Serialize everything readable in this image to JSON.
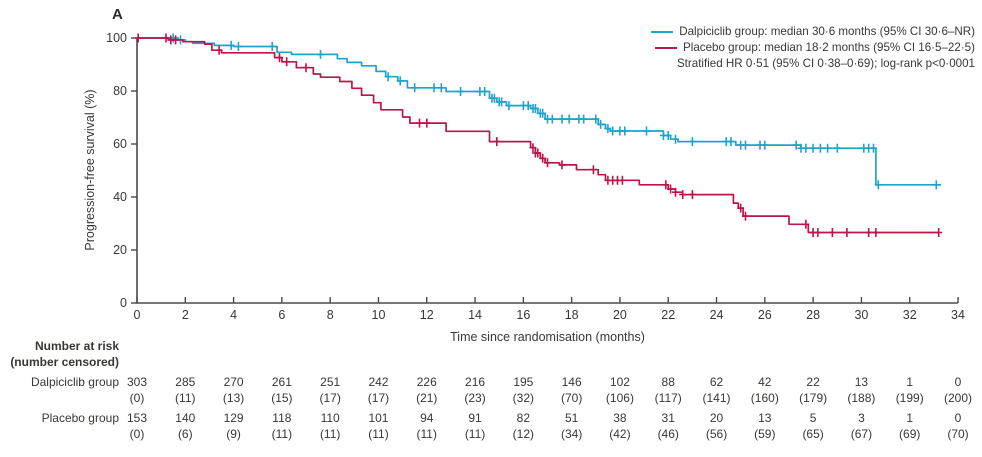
{
  "panel": {
    "label": "A"
  },
  "legend": {
    "entries": [
      {
        "label": "Dalpiciclib group: median 30·6 months (95% CI 30·6–NR)"
      },
      {
        "label": "Placebo group: median 18·2 months (95% CI 16·5–22·5)"
      }
    ],
    "note": "Stratified HR 0·51 (95% CI 0·38–0·69); log-rank p<0·0001"
  },
  "chart_data": {
    "type": "line",
    "subtype": "kaplan-meier-step",
    "xlabel": "Time since randomisation (months)",
    "ylabel": "Progression-free survival (%)",
    "xlim": [
      0,
      34
    ],
    "ylim": [
      0,
      100
    ],
    "x_ticks": [
      0,
      2,
      4,
      6,
      8,
      10,
      12,
      14,
      16,
      18,
      20,
      22,
      24,
      26,
      28,
      30,
      32,
      34
    ],
    "y_ticks": [
      0,
      20,
      40,
      60,
      80,
      100
    ],
    "grid": false,
    "legend_position": "top-right",
    "series": [
      {
        "name": "Dalpiciclib group",
        "color": "#1fa3cb",
        "median_months": "30·6",
        "ci": "30·6–NR",
        "end": 33.3,
        "steps": [
          [
            0,
            100
          ],
          [
            1.7,
            99.3
          ],
          [
            2.0,
            98.6
          ],
          [
            2.3,
            98.0
          ],
          [
            3.2,
            97.2
          ],
          [
            4.0,
            96.8
          ],
          [
            5.8,
            94.6
          ],
          [
            6.4,
            93.8
          ],
          [
            8.3,
            92.2
          ],
          [
            8.7,
            90.8
          ],
          [
            9.3,
            89.5
          ],
          [
            9.9,
            87.4
          ],
          [
            10.3,
            85.4
          ],
          [
            10.8,
            83.8
          ],
          [
            11.2,
            81.2
          ],
          [
            12.8,
            79.8
          ],
          [
            14.6,
            77.3
          ],
          [
            14.9,
            75.9
          ],
          [
            15.3,
            74.5
          ],
          [
            16.3,
            73.4
          ],
          [
            16.6,
            71.6
          ],
          [
            16.9,
            69.4
          ],
          [
            19.1,
            67.4
          ],
          [
            19.4,
            65.8
          ],
          [
            19.6,
            64.9
          ],
          [
            21.8,
            63.2
          ],
          [
            22.1,
            61.8
          ],
          [
            22.4,
            60.9
          ],
          [
            24.8,
            59.6
          ],
          [
            27.5,
            58.4
          ],
          [
            30.6,
            44.6
          ]
        ],
        "censors": [
          1.5,
          1.8,
          3.9,
          4.2,
          5.6,
          7.6,
          10.4,
          10.9,
          11.5,
          12.3,
          12.6,
          13.4,
          14.2,
          14.4,
          14.7,
          14.8,
          15.0,
          15.1,
          15.4,
          16.0,
          16.2,
          16.4,
          16.5,
          16.7,
          16.8,
          17.0,
          17.2,
          17.6,
          17.9,
          18.3,
          18.5,
          19.0,
          19.2,
          19.5,
          19.7,
          20.0,
          20.2,
          21.1,
          21.8,
          22.0,
          22.3,
          23.0,
          24.4,
          24.6,
          25.0,
          25.2,
          25.8,
          26.0,
          27.3,
          27.5,
          27.7,
          28.0,
          28.3,
          28.6,
          29.0,
          30.1,
          30.3,
          30.5,
          30.7,
          33.1
        ]
      },
      {
        "name": "Placebo group",
        "color": "#be1549",
        "median_months": "18·2",
        "ci": "16·5–22·5",
        "end": 33.2,
        "steps": [
          [
            0,
            100
          ],
          [
            1.3,
            99.3
          ],
          [
            1.9,
            98.6
          ],
          [
            2.8,
            97.7
          ],
          [
            3.1,
            95.4
          ],
          [
            3.5,
            94.4
          ],
          [
            5.7,
            92.6
          ],
          [
            6.0,
            91.0
          ],
          [
            6.6,
            88.8
          ],
          [
            7.3,
            86.4
          ],
          [
            7.6,
            85.2
          ],
          [
            8.4,
            83.6
          ],
          [
            8.9,
            81.0
          ],
          [
            9.3,
            78.4
          ],
          [
            9.8,
            75.6
          ],
          [
            10.1,
            72.9
          ],
          [
            11.0,
            70.2
          ],
          [
            11.3,
            67.9
          ],
          [
            12.8,
            64.8
          ],
          [
            14.6,
            60.9
          ],
          [
            16.3,
            58.6
          ],
          [
            16.5,
            56.6
          ],
          [
            16.7,
            54.6
          ],
          [
            16.9,
            52.9
          ],
          [
            17.5,
            52.1
          ],
          [
            18.2,
            50.3
          ],
          [
            19.1,
            48.4
          ],
          [
            19.4,
            46.3
          ],
          [
            20.8,
            44.6
          ],
          [
            22.0,
            43.0
          ],
          [
            22.3,
            41.8
          ],
          [
            22.6,
            40.9
          ],
          [
            24.7,
            37.7
          ],
          [
            24.9,
            35.8
          ],
          [
            25.1,
            32.8
          ],
          [
            27.0,
            29.7
          ],
          [
            27.8,
            26.6
          ]
        ],
        "censors": [
          0.05,
          1.2,
          1.4,
          1.6,
          3.4,
          5.9,
          6.2,
          7.0,
          11.7,
          12.0,
          14.9,
          16.4,
          16.5,
          16.6,
          16.8,
          17.0,
          17.6,
          18.9,
          19.5,
          19.7,
          19.9,
          20.1,
          21.9,
          22.1,
          22.3,
          22.6,
          23.0,
          25.0,
          25.2,
          27.7,
          28.0,
          28.2,
          28.8,
          29.4,
          30.3,
          30.6,
          33.2
        ]
      }
    ]
  },
  "risk_table": {
    "header_line1": "Number at risk",
    "header_line2": "(number censored)",
    "columns_months": [
      0,
      2,
      4,
      6,
      8,
      10,
      12,
      14,
      16,
      18,
      20,
      22,
      24,
      26,
      28,
      30,
      32,
      34
    ],
    "rows": [
      {
        "label": "Dalpiciclib group",
        "at_risk": [
          "303",
          "285",
          "270",
          "261",
          "251",
          "242",
          "226",
          "216",
          "195",
          "146",
          "102",
          "88",
          "62",
          "42",
          "22",
          "13",
          "1",
          "0"
        ],
        "censored": [
          "(0)",
          "(11)",
          "(13)",
          "(15)",
          "(17)",
          "(17)",
          "(21)",
          "(23)",
          "(32)",
          "(70)",
          "(106)",
          "(117)",
          "(141)",
          "(160)",
          "(179)",
          "(188)",
          "(199)",
          "(200)"
        ]
      },
      {
        "label": "Placebo group",
        "at_risk": [
          "153",
          "140",
          "129",
          "118",
          "110",
          "101",
          "94",
          "91",
          "82",
          "51",
          "38",
          "31",
          "20",
          "13",
          "5",
          "3",
          "1",
          "0"
        ],
        "censored": [
          "(0)",
          "(6)",
          "(9)",
          "(11)",
          "(11)",
          "(11)",
          "(11)",
          "(11)",
          "(12)",
          "(34)",
          "(42)",
          "(46)",
          "(56)",
          "(59)",
          "(65)",
          "(67)",
          "(69)",
          "(70)"
        ]
      }
    ]
  },
  "colors": {
    "dalpiciclib": "#1fa3cb",
    "placebo": "#be1549",
    "axis": "#4d4a48",
    "text": "#3a3735"
  }
}
